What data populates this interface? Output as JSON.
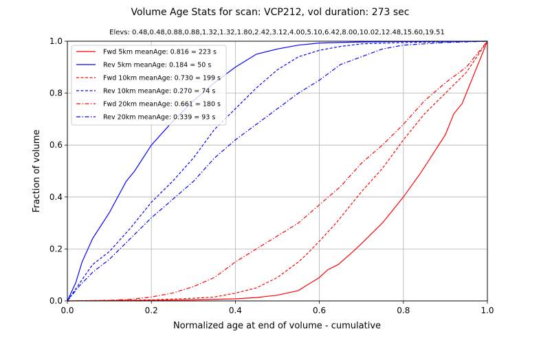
{
  "chart_data": {
    "type": "line",
    "title": "Volume Age Stats for scan: VCP212, vol duration: 273 sec",
    "subtitle": "Elevs: 0.48,0.48,0.88,0.88,1.32,1.32,1.80,2.42,3.12,4.00,5.10,6.42,8.00,10.02,12.48,15.60,19.51",
    "xlabel": "Normalized age at end of volume - cumulative",
    "ylabel": "Fraction of volume",
    "xlim": [
      0.0,
      1.0
    ],
    "ylim": [
      0.0,
      1.0
    ],
    "xticks": [
      "0.0",
      "0.2",
      "0.4",
      "0.6",
      "0.8",
      "1.0"
    ],
    "yticks": [
      "0.0",
      "0.2",
      "0.4",
      "0.6",
      "0.8",
      "1.0"
    ],
    "grid": true,
    "legend_position": "top-left",
    "series": [
      {
        "name": "Fwd  5km meanAge: 0.816 = 223 s",
        "color": "#ff0000",
        "dash": "solid",
        "points": [
          [
            0,
            0
          ],
          [
            0.1,
            0.001
          ],
          [
            0.2,
            0.002
          ],
          [
            0.3,
            0.004
          ],
          [
            0.4,
            0.008
          ],
          [
            0.45,
            0.013
          ],
          [
            0.5,
            0.022
          ],
          [
            0.55,
            0.04
          ],
          [
            0.57,
            0.06
          ],
          [
            0.6,
            0.09
          ],
          [
            0.62,
            0.12
          ],
          [
            0.645,
            0.14
          ],
          [
            0.68,
            0.19
          ],
          [
            0.7,
            0.22
          ],
          [
            0.75,
            0.3
          ],
          [
            0.8,
            0.4
          ],
          [
            0.84,
            0.49
          ],
          [
            0.86,
            0.54
          ],
          [
            0.9,
            0.64
          ],
          [
            0.92,
            0.72
          ],
          [
            0.94,
            0.76
          ],
          [
            1.0,
            1.0
          ]
        ]
      },
      {
        "name": "Rev  5km meanAge: 0.184 = 50 s",
        "color": "#0000ff",
        "dash": "solid",
        "points": [
          [
            0,
            0
          ],
          [
            0.02,
            0.07
          ],
          [
            0.035,
            0.15
          ],
          [
            0.06,
            0.24
          ],
          [
            0.1,
            0.34
          ],
          [
            0.14,
            0.46
          ],
          [
            0.16,
            0.5
          ],
          [
            0.2,
            0.6
          ],
          [
            0.25,
            0.69
          ],
          [
            0.3,
            0.77
          ],
          [
            0.35,
            0.84
          ],
          [
            0.4,
            0.9
          ],
          [
            0.45,
            0.95
          ],
          [
            0.5,
            0.97
          ],
          [
            0.55,
            0.985
          ],
          [
            0.6,
            0.993
          ],
          [
            0.7,
            0.997
          ],
          [
            0.8,
            0.999
          ],
          [
            1.0,
            1.0
          ]
        ]
      },
      {
        "name": "Fwd 10km meanAge: 0.730 = 199 s",
        "color": "#ff0000",
        "dash": "dashed",
        "points": [
          [
            0,
            0
          ],
          [
            0.1,
            0.002
          ],
          [
            0.2,
            0.004
          ],
          [
            0.3,
            0.01
          ],
          [
            0.35,
            0.015
          ],
          [
            0.4,
            0.03
          ],
          [
            0.45,
            0.05
          ],
          [
            0.5,
            0.09
          ],
          [
            0.55,
            0.15
          ],
          [
            0.57,
            0.18
          ],
          [
            0.6,
            0.23
          ],
          [
            0.64,
            0.3
          ],
          [
            0.7,
            0.42
          ],
          [
            0.75,
            0.51
          ],
          [
            0.8,
            0.62
          ],
          [
            0.85,
            0.72
          ],
          [
            0.9,
            0.8
          ],
          [
            0.95,
            0.88
          ],
          [
            1.0,
            1.0
          ]
        ]
      },
      {
        "name": "Rev 10km meanAge: 0.270 = 74 s",
        "color": "#0000ff",
        "dash": "dashed",
        "points": [
          [
            0,
            0
          ],
          [
            0.03,
            0.07
          ],
          [
            0.06,
            0.14
          ],
          [
            0.1,
            0.19
          ],
          [
            0.15,
            0.28
          ],
          [
            0.2,
            0.38
          ],
          [
            0.25,
            0.46
          ],
          [
            0.3,
            0.55
          ],
          [
            0.35,
            0.66
          ],
          [
            0.4,
            0.74
          ],
          [
            0.45,
            0.82
          ],
          [
            0.5,
            0.89
          ],
          [
            0.55,
            0.94
          ],
          [
            0.6,
            0.965
          ],
          [
            0.65,
            0.98
          ],
          [
            0.7,
            0.99
          ],
          [
            0.8,
            0.995
          ],
          [
            1.0,
            1.0
          ]
        ]
      },
      {
        "name": "Fwd 20km meanAge: 0.661 = 180 s",
        "color": "#ff0000",
        "dash": "dashdot",
        "points": [
          [
            0,
            0
          ],
          [
            0.1,
            0.002
          ],
          [
            0.15,
            0.006
          ],
          [
            0.2,
            0.015
          ],
          [
            0.25,
            0.03
          ],
          [
            0.3,
            0.055
          ],
          [
            0.35,
            0.09
          ],
          [
            0.4,
            0.15
          ],
          [
            0.45,
            0.2
          ],
          [
            0.5,
            0.25
          ],
          [
            0.55,
            0.3
          ],
          [
            0.6,
            0.37
          ],
          [
            0.65,
            0.44
          ],
          [
            0.7,
            0.53
          ],
          [
            0.75,
            0.6
          ],
          [
            0.8,
            0.68
          ],
          [
            0.85,
            0.77
          ],
          [
            0.9,
            0.84
          ],
          [
            0.95,
            0.9
          ],
          [
            1.0,
            1.0
          ]
        ]
      },
      {
        "name": "Rev 20km meanAge: 0.339 = 93 s",
        "color": "#0000ff",
        "dash": "dashdot",
        "points": [
          [
            0,
            0
          ],
          [
            0.03,
            0.06
          ],
          [
            0.06,
            0.11
          ],
          [
            0.1,
            0.16
          ],
          [
            0.15,
            0.24
          ],
          [
            0.2,
            0.32
          ],
          [
            0.25,
            0.39
          ],
          [
            0.3,
            0.46
          ],
          [
            0.35,
            0.55
          ],
          [
            0.4,
            0.62
          ],
          [
            0.45,
            0.68
          ],
          [
            0.5,
            0.74
          ],
          [
            0.55,
            0.8
          ],
          [
            0.6,
            0.85
          ],
          [
            0.65,
            0.91
          ],
          [
            0.7,
            0.94
          ],
          [
            0.75,
            0.97
          ],
          [
            0.8,
            0.985
          ],
          [
            0.9,
            0.995
          ],
          [
            1.0,
            1.0
          ]
        ]
      }
    ]
  }
}
